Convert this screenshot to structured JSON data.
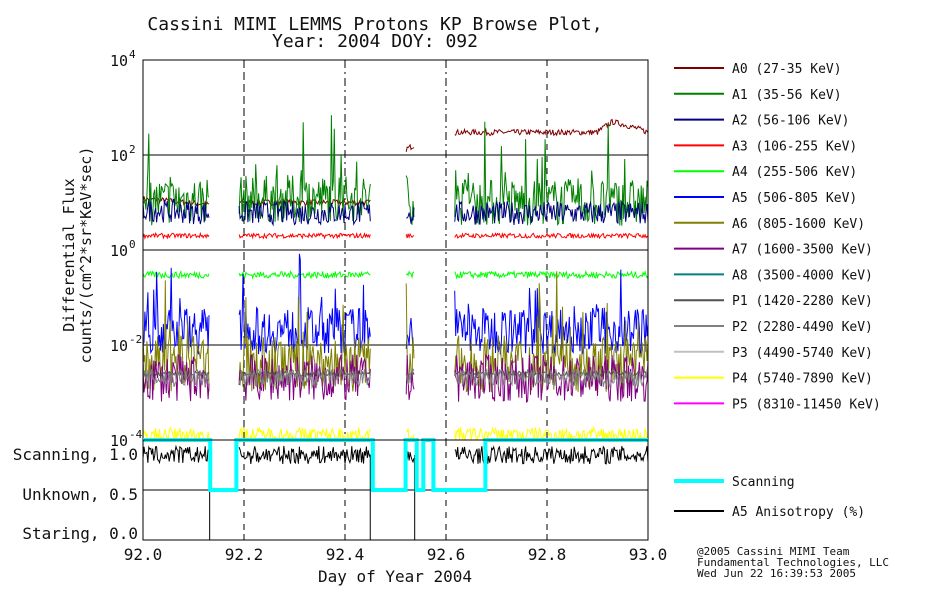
{
  "chart_data": [
    {
      "type": "line",
      "title": "Cassini MIMI LEMMS Protons KP Browse Plot,",
      "subtitle": "Year: 2004 DOY: 092",
      "xlabel": "Day of Year 2004",
      "ylabel": "Differential Flux",
      "ylabel_units": "counts/(cm^2*sr*KeV*sec)",
      "y_scale": "log",
      "xlim": [
        92.0,
        93.0
      ],
      "ylim": [
        0.0001,
        10000
      ],
      "x_ticks": [
        "92.0",
        "92.2",
        "92.4",
        "92.6",
        "92.8",
        "93.0"
      ],
      "y_ticks": [
        {
          "base": "10",
          "exp": "-4"
        },
        {
          "base": "10",
          "exp": "-2"
        },
        {
          "base": "10",
          "exp": "0"
        },
        {
          "base": "10",
          "exp": "2"
        },
        {
          "base": "10",
          "exp": "4"
        }
      ],
      "gaps": [
        [
          92.132,
          92.19
        ],
        [
          92.45,
          92.52
        ],
        [
          92.538,
          92.617
        ]
      ],
      "grid": true,
      "legend_position": "right",
      "series": [
        {
          "name": "A0 (27-35 KeV)",
          "color": "#800000",
          "x": [
            92.0,
            92.13,
            92.19,
            92.45,
            92.618,
            92.7,
            92.9,
            92.93,
            93.0
          ],
          "values": [
            12,
            9,
            10,
            10,
            300,
            300,
            300,
            500,
            300
          ]
        },
        {
          "name": "A1 (35-56 KeV)",
          "color": "#008000",
          "x": [
            92.0,
            92.13,
            92.19,
            92.45,
            92.618,
            93.0
          ],
          "values": [
            10,
            12,
            12,
            12,
            10,
            10
          ]
        },
        {
          "name": "A2 (56-106 KeV)",
          "color": "#000080",
          "x": [
            92.0,
            92.13,
            92.19,
            92.45,
            92.618,
            93.0
          ],
          "values": [
            7,
            6,
            6,
            6,
            6,
            6
          ]
        },
        {
          "name": "A3 (106-255 KeV)",
          "color": "#ff0000",
          "x": [
            92.0,
            92.13,
            92.19,
            92.45,
            92.618,
            93.0
          ],
          "values": [
            2,
            2,
            2,
            2,
            2,
            2
          ]
        },
        {
          "name": "A4 (255-506 KeV)",
          "color": "#00ff00",
          "x": [
            92.0,
            92.13,
            92.19,
            92.45,
            92.618,
            93.0
          ],
          "values": [
            0.3,
            0.3,
            0.3,
            0.3,
            0.3,
            0.3
          ]
        },
        {
          "name": "A5 (506-805 KeV)",
          "color": "#0000ff",
          "x": [
            92.0,
            92.13,
            92.19,
            92.45,
            92.618,
            93.0
          ],
          "values": [
            0.02,
            0.02,
            0.02,
            0.02,
            0.02,
            0.02
          ]
        },
        {
          "name": "A6 (805-1600 KeV)",
          "color": "#808000",
          "x": [
            92.0,
            92.13,
            92.19,
            92.45,
            92.618,
            93.0
          ],
          "values": [
            0.004,
            0.004,
            0.004,
            0.004,
            0.004,
            0.004
          ]
        },
        {
          "name": "A7 (1600-3500 KeV)",
          "color": "#800080",
          "x": [
            92.0,
            92.13,
            92.19,
            92.45,
            92.618,
            93.0
          ],
          "values": [
            0.002,
            0.002,
            0.002,
            0.002,
            0.002,
            0.002
          ]
        },
        {
          "name": "A8 (3500-4000 KeV)",
          "color": "#008080",
          "x": [],
          "values": []
        },
        {
          "name": "P1 (1420-2280 KeV)",
          "color": "#505050",
          "x": [
            92.0,
            92.13,
            92.19,
            92.45,
            92.618,
            93.0
          ],
          "values": [
            0.0025,
            0.0025,
            0.0025,
            0.0025,
            0.0025,
            0.0025
          ]
        },
        {
          "name": "P2 (2280-4490 KeV)",
          "color": "#808080",
          "x": [
            92.0,
            92.13,
            92.19,
            92.45,
            92.618,
            93.0
          ],
          "values": [
            0.002,
            0.002,
            0.002,
            0.002,
            0.002,
            0.002
          ]
        },
        {
          "name": "P3 (4490-5740 KeV)",
          "color": "#c0c0c0",
          "x": [],
          "values": []
        },
        {
          "name": "P4 (5740-7890 KeV)",
          "color": "#ffff00",
          "x": [
            92.0,
            92.13,
            92.19,
            92.45,
            92.618,
            93.0
          ],
          "values": [
            0.00013,
            0.00013,
            0.00013,
            0.00013,
            0.00013,
            0.00013
          ]
        },
        {
          "name": "P5 (8310-11450 KeV)",
          "color": "#ff00ff",
          "x": [],
          "values": []
        }
      ]
    },
    {
      "type": "line",
      "xlabel": "Day of Year 2004",
      "xlim": [
        92.0,
        93.0
      ],
      "ylim": [
        0.0,
        1.0
      ],
      "y_ticks": [
        "Scanning, 1.0",
        "Unknown, 0.5",
        "Staring, 0.0"
      ],
      "grid": true,
      "legend_position": "right",
      "series": [
        {
          "name": "Scanning",
          "color": "#00ffff",
          "x": [
            92.0,
            92.133,
            92.133,
            92.185,
            92.185,
            92.455,
            92.455,
            92.52,
            92.52,
            92.542,
            92.542,
            92.555,
            92.555,
            92.575,
            92.575,
            92.64,
            92.64,
            92.678,
            92.678,
            93.0
          ],
          "values": [
            1.0,
            1.0,
            0.5,
            0.5,
            1.0,
            1.0,
            0.5,
            0.5,
            1.0,
            1.0,
            0.5,
            0.5,
            1.0,
            1.0,
            0.5,
            0.5,
            0.5,
            0.5,
            1.0,
            1.0
          ]
        },
        {
          "name": "A5 Anisotropy (%)",
          "color": "#000000",
          "x": [
            92.0,
            92.13,
            92.19,
            92.45,
            92.618,
            93.0
          ],
          "values": [
            0.85,
            0.85,
            0.85,
            0.85,
            0.85,
            0.85
          ]
        }
      ]
    }
  ],
  "footer": {
    "line1": "@2005 Cassini MIMI Team",
    "line2": "Fundamental Technologies, LLC",
    "line3": "Wed Jun 22 16:39:53 2005"
  }
}
